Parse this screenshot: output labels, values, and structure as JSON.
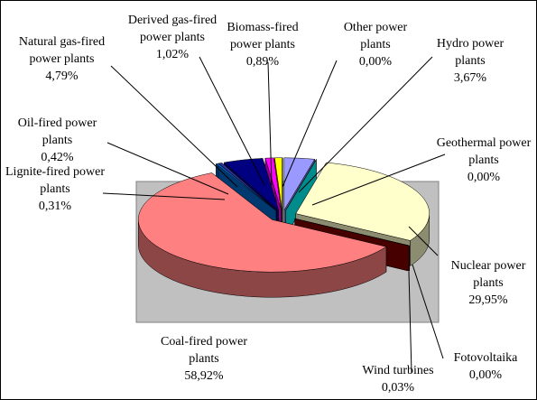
{
  "chart_data": {
    "type": "pie",
    "categories": [
      "Hydro power plants",
      "Geothermal power plants",
      "Nuclear power plants",
      "Fotovoltaika",
      "Wind turbines",
      "Coal-fired power plants",
      "Lignite-fired power plants",
      "Oil-fired power plants",
      "Natural gas-fired power plants",
      "Derived gas-fired power plants",
      "Biomass-fired power plants",
      "Other power plants"
    ],
    "values": [
      3.67,
      0,
      29.95,
      0,
      0.03,
      58.92,
      0.31,
      0.42,
      4.79,
      1.02,
      0.89,
      0
    ],
    "value_labels": [
      "3,67%",
      "0,00%",
      "29,95%",
      "0,00%",
      "0,03%",
      "58,92%",
      "0,31%",
      "0,42%",
      "4,79%",
      "1,02%",
      "0,89%",
      "0,00%"
    ],
    "colors": [
      "#9999ff",
      "#00ffff",
      "#ffffcc",
      "#ccffff",
      "#800000",
      "#ff8080",
      "#0066cc",
      "#333399",
      "#000080",
      "#ff00ff",
      "#ffff00",
      "#00ffff"
    ]
  }
}
